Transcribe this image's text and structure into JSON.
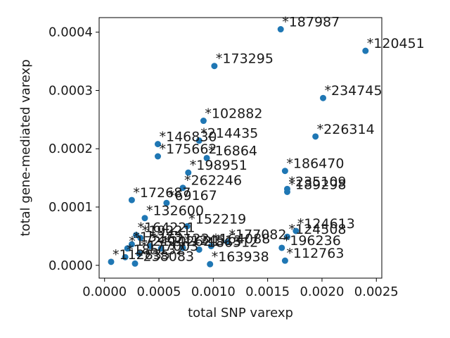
{
  "chart_data": {
    "type": "scatter",
    "title": "",
    "xlabel": "total SNP varexp",
    "ylabel": "total gene-mediated varexp",
    "xlim": [
      -5e-05,
      0.00255
    ],
    "ylim": [
      -2.2e-05,
      0.000425
    ],
    "xticks": [
      0.0,
      0.0005,
      0.001,
      0.0015,
      0.002,
      0.0025
    ],
    "xtick_labels": [
      "0.0000",
      "0.0005",
      "0.0010",
      "0.0015",
      "0.0020",
      "0.0025"
    ],
    "yticks": [
      0.0,
      0.0001,
      0.0002,
      0.0003,
      0.0004
    ],
    "ytick_labels": [
      "0.0000",
      "0.0001",
      "0.0002",
      "0.0003",
      "0.0004"
    ],
    "grid": false,
    "marker_color": "#1f77b4",
    "points": [
      {
        "label": "*187987",
        "x": 0.00162,
        "y": 0.000405
      },
      {
        "label": "*120451",
        "x": 0.0024,
        "y": 0.000368
      },
      {
        "label": "*173295",
        "x": 0.00101,
        "y": 0.000342
      },
      {
        "label": "*234745",
        "x": 0.00201,
        "y": 0.000287
      },
      {
        "label": "*102882",
        "x": 0.00091,
        "y": 0.000248
      },
      {
        "label": "*226314",
        "x": 0.00194,
        "y": 0.000221
      },
      {
        "label": "*146830",
        "x": 0.00049,
        "y": 0.000208
      },
      {
        "label": "*214435",
        "x": 0.00087,
        "y": 0.000214
      },
      {
        "label": "*175662",
        "x": 0.00049,
        "y": 0.000187
      },
      {
        "label": "*16864",
        "x": 0.00094,
        "y": 0.000184
      },
      {
        "label": "*198951",
        "x": 0.00077,
        "y": 0.000159
      },
      {
        "label": "*186470",
        "x": 0.00166,
        "y": 0.000162
      },
      {
        "label": "*262246",
        "x": 0.00072,
        "y": 0.000133
      },
      {
        "label": "*235109",
        "x": 0.00168,
        "y": 0.000131
      },
      {
        "label": "*189298",
        "x": 0.00168,
        "y": 0.000126
      },
      {
        "label": "*172687",
        "x": 0.00025,
        "y": 0.000112
      },
      {
        "label": "*69167",
        "x": 0.00057,
        "y": 0.000107
      },
      {
        "label": "*132600",
        "x": 0.00037,
        "y": 8.1e-05
      },
      {
        "label": "*152219",
        "x": 0.00076,
        "y": 6.7e-05
      },
      {
        "label": "*164221",
        "x": 0.00029,
        "y": 5.2e-05
      },
      {
        "label": "*19221",
        "x": 0.00033,
        "y": 4.7e-05
      },
      {
        "label": "*124613",
        "x": 0.00176,
        "y": 5.9e-05
      },
      {
        "label": "*124508",
        "x": 0.00168,
        "y": 4.9e-05
      },
      {
        "label": "*177082",
        "x": 0.00113,
        "y": 4e-05
      },
      {
        "label": "*164088",
        "x": 0.00098,
        "y": 3.3e-05
      },
      {
        "label": "*196236",
        "x": 0.00163,
        "y": 3e-05
      },
      {
        "label": "*15273",
        "x": 0.00025,
        "y": 3.6e-05
      },
      {
        "label": "*162123",
        "x": 0.00042,
        "y": 3.3e-05
      },
      {
        "label": "*172121",
        "x": 0.00021,
        "y": 2.9e-05
      },
      {
        "label": "*102621",
        "x": 0.00052,
        "y": 2.9e-05
      },
      {
        "label": "*124513",
        "x": 0.00072,
        "y": 3e-05
      },
      {
        "label": "*186512",
        "x": 0.00087,
        "y": 2.7e-05
      },
      {
        "label": "*112763",
        "x": 0.00166,
        "y": 8e-06
      },
      {
        "label": "*163938",
        "x": 0.00097,
        "y": 2e-06
      },
      {
        "label": "*112835",
        "x": 6e-05,
        "y": 6e-06
      },
      {
        "label": "*238083",
        "x": 0.00028,
        "y": 3e-06
      },
      {
        "label": "*177003",
        "x": 0.00032,
        "y": 2e-05
      },
      {
        "label": "*185132",
        "x": 0.00019,
        "y": 1.4e-05
      }
    ]
  }
}
